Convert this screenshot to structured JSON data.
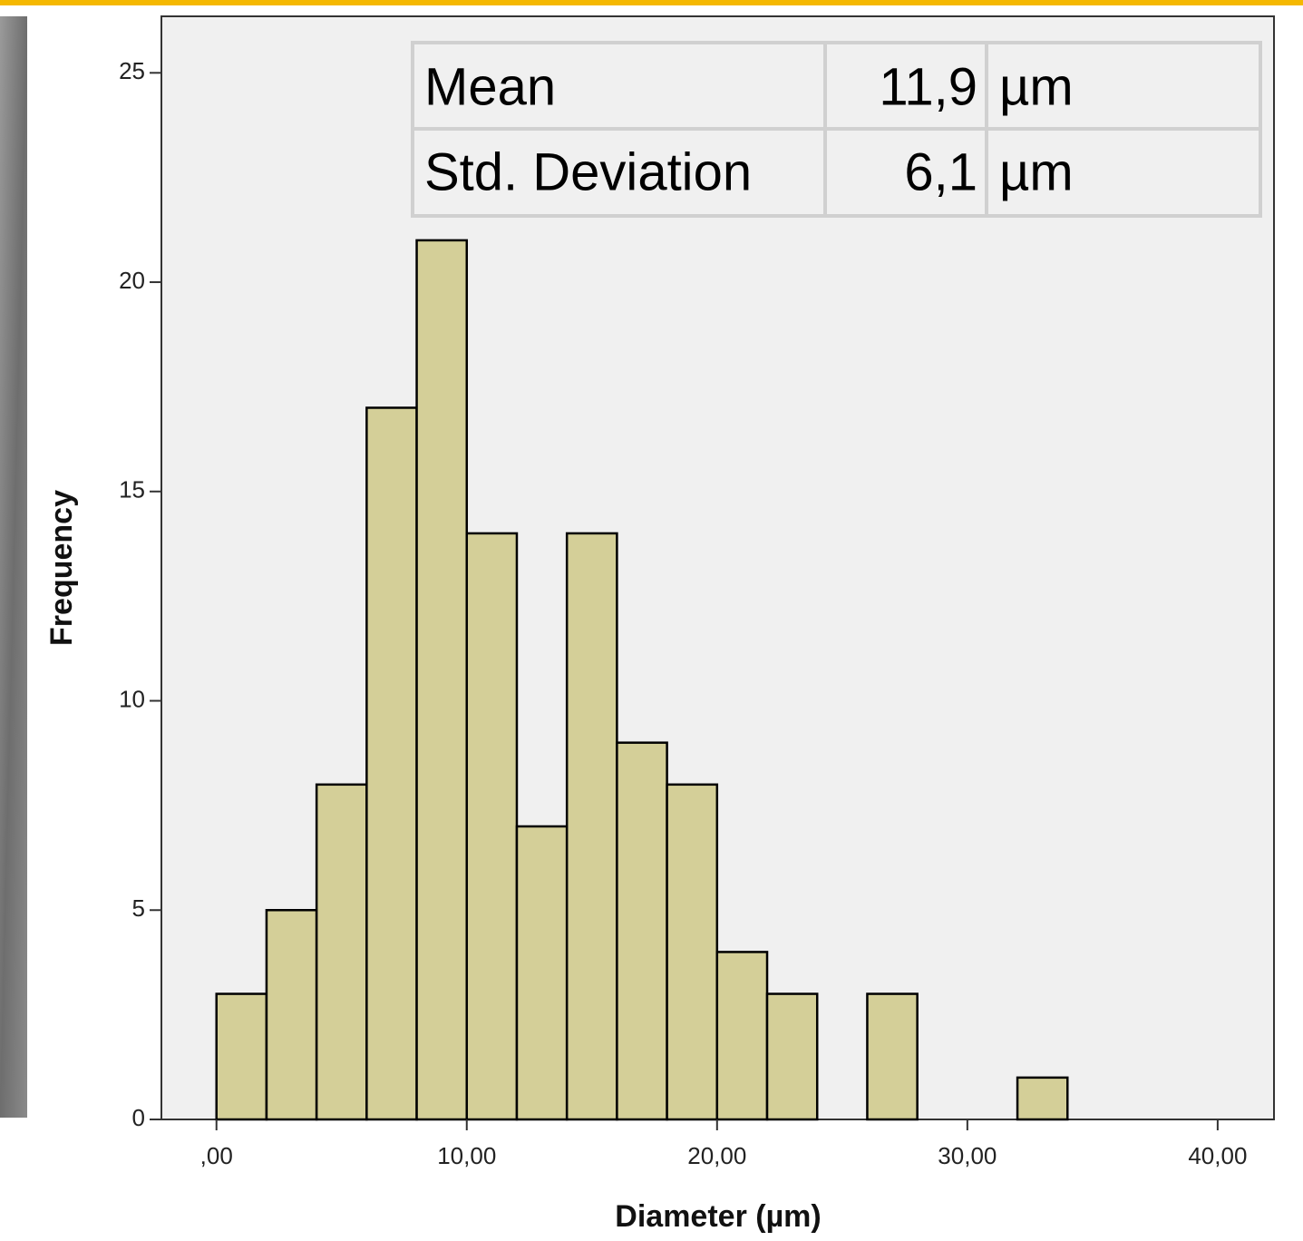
{
  "chart_data": {
    "type": "histogram",
    "x_label": "Diameter (µm)",
    "y_label": "Frequency",
    "bins": [
      0,
      2,
      4,
      6,
      8,
      10,
      12,
      14,
      16,
      18,
      20,
      22,
      24,
      26,
      28,
      30,
      32,
      34
    ],
    "counts": [
      3,
      5,
      8,
      17,
      21,
      14,
      7,
      14,
      9,
      8,
      4,
      3,
      0,
      3,
      0,
      0,
      1
    ],
    "color": "#d4cf98",
    "edge_color": "#000000",
    "xlim": [
      -2.2,
      42.25
    ],
    "ylim": [
      0,
      26.35
    ],
    "xticks": [
      {
        "value": 0,
        "label": ",00"
      },
      {
        "value": 10,
        "label": "10,00"
      },
      {
        "value": 20,
        "label": "20,00"
      },
      {
        "value": 30,
        "label": "30,00"
      },
      {
        "value": 40,
        "label": "40,00"
      }
    ],
    "yticks": [
      0,
      5,
      10,
      15,
      20,
      25
    ],
    "stats_table": {
      "rows": [
        [
          "Mean",
          "11,9",
          "µm"
        ],
        [
          "Std. Deviation",
          "6,1",
          "µm"
        ]
      ]
    }
  }
}
